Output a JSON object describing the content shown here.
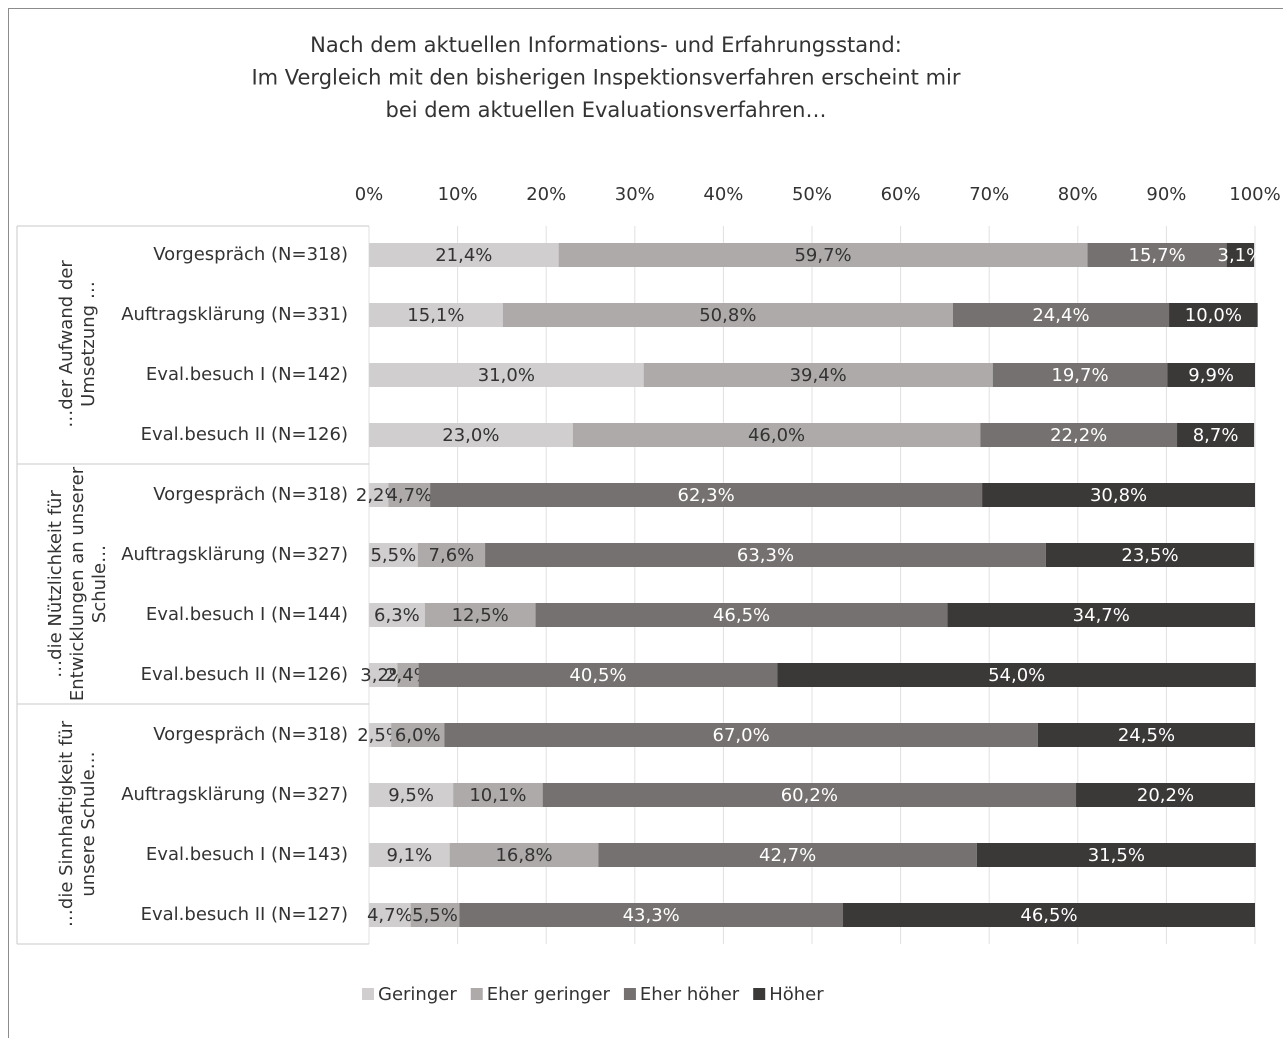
{
  "chart_data": {
    "type": "stacked-bar-horizontal",
    "title": [
      "Nach dem aktuellen Informations- und Erfahrungsstand:",
      "Im Vergleich mit den bisherigen Inspektionsverfahren erscheint mir",
      "bei dem aktuellen Evaluationsverfahren…"
    ],
    "groups": [
      {
        "label": [
          "…der Aufwand der",
          "Umsetzung …"
        ],
        "categories": [
          "Vorgespräch (N=318)",
          "Auftragsklärung (N=331)",
          "Eval.besuch I (N=142)",
          "Eval.besuch II (N=126)"
        ]
      },
      {
        "label": [
          "…die Nützlichkeit für",
          "Entwicklungen an unserer",
          "Schule…"
        ],
        "categories": [
          "Vorgespräch (N=318)",
          "Auftragsklärung (N=327)",
          "Eval.besuch I (N=144)",
          "Eval.besuch II (N=126)"
        ]
      },
      {
        "label": [
          "…die Sinnhaftigkeit für",
          "unsere Schule…"
        ],
        "categories": [
          "Vorgespräch (N=318)",
          "Auftragsklärung (N=327)",
          "Eval.besuch I (N=143)",
          "Eval.besuch II (N=127)"
        ]
      }
    ],
    "series": [
      {
        "name": "Geringer",
        "color": "#d0cece",
        "text_color": "#333333",
        "values": [
          21.4,
          15.1,
          31.0,
          23.0,
          2.2,
          5.5,
          6.3,
          3.2,
          2.5,
          9.5,
          9.1,
          4.7
        ],
        "value_labels": [
          "21,4%",
          "15,1%",
          "31,0%",
          "23,0%",
          "2,2%",
          "5,5%",
          "6,3%",
          "3,2%",
          "2,5%",
          "9,5%",
          "9,1%",
          "4,7%"
        ]
      },
      {
        "name": "Eher geringer",
        "color": "#aeaaaa",
        "text_color": "#333333",
        "values": [
          59.7,
          50.8,
          39.4,
          46.0,
          4.7,
          7.6,
          12.5,
          2.4,
          6.0,
          10.1,
          16.8,
          5.5
        ],
        "value_labels": [
          "59,7%",
          "50,8%",
          "39,4%",
          "46,0%",
          "4,7%",
          "7,6%",
          "12,5%",
          "2,4%",
          "6,0%",
          "10,1%",
          "16,8%",
          "5,5%"
        ]
      },
      {
        "name": "Eher höher",
        "color": "#767171",
        "text_color": "#ffffff",
        "values": [
          15.7,
          24.4,
          19.7,
          22.2,
          62.3,
          63.3,
          46.5,
          40.5,
          67.0,
          60.2,
          42.7,
          43.3
        ],
        "value_labels": [
          "15,7%",
          "24,4%",
          "19,7%",
          "22,2%",
          "62,3%",
          "63,3%",
          "46,5%",
          "40,5%",
          "67,0%",
          "60,2%",
          "42,7%",
          "43,3%"
        ]
      },
      {
        "name": "Höher",
        "color": "#3b3838",
        "text_color": "#ffffff",
        "values": [
          3.1,
          10.0,
          9.9,
          8.7,
          30.8,
          23.5,
          34.7,
          54.0,
          24.5,
          20.2,
          31.5,
          46.5
        ],
        "value_labels": [
          "3,1%",
          "10,0%",
          "9,9%",
          "8,7%",
          "30,8%",
          "23,5%",
          "34,7%",
          "54,0%",
          "24,5%",
          "20,2%",
          "31,5%",
          "46,5%"
        ]
      }
    ],
    "xlim": [
      0,
      100
    ],
    "xticks": [
      {
        "value": 0,
        "label": "0%"
      },
      {
        "value": 10,
        "label": "10%"
      },
      {
        "value": 20,
        "label": "20%"
      },
      {
        "value": 30,
        "label": "30%"
      },
      {
        "value": 40,
        "label": "40%"
      },
      {
        "value": 50,
        "label": "50%"
      },
      {
        "value": 60,
        "label": "60%"
      },
      {
        "value": 70,
        "label": "70%"
      },
      {
        "value": 80,
        "label": "80%"
      },
      {
        "value": 90,
        "label": "90%"
      },
      {
        "value": 100,
        "label": "100%"
      }
    ],
    "grid": true,
    "legend": "bottom"
  }
}
